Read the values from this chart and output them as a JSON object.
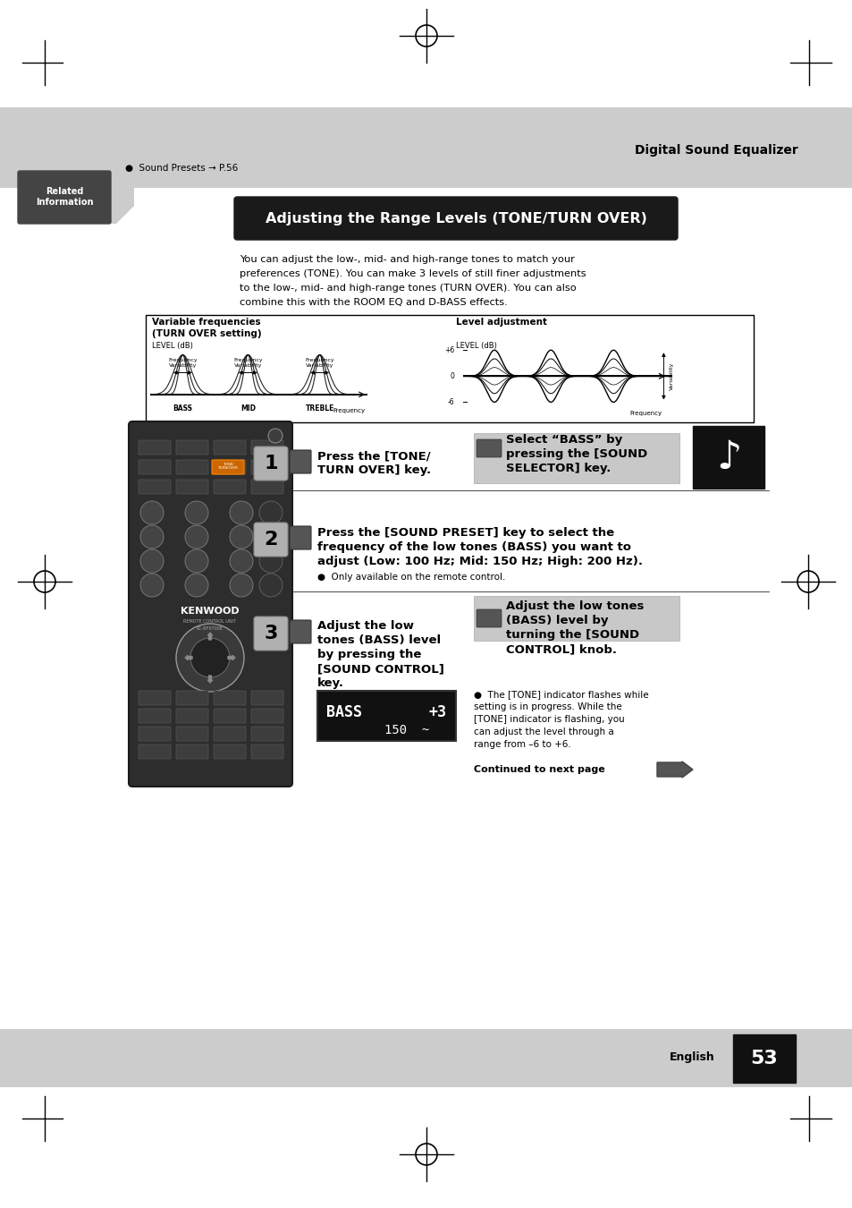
{
  "bg_color": "#ffffff",
  "header_bg": "#cccccc",
  "footer_bg": "#cccccc",
  "title_box_bg": "#1a1a1a",
  "title_box_text": "Adjusting the Range Levels (TONE/TURN OVER)",
  "title_box_text_color": "#ffffff",
  "section_title": "Digital Sound Equalizer",
  "related_label": "Related\nInformation",
  "related_bg": "#444444",
  "bullet_related": "●  Sound Presets → P.56",
  "body_line1": "You can adjust the low-, mid- and high-range tones to match your",
  "body_line2": "preferences (TONE). You can make 3 levels of still finer adjustments",
  "body_line3": "to the low-, mid- and high-range tones (TURN OVER). You can also",
  "body_line4": "combine this with the ROOM EQ and D-BASS effects.",
  "step1_text_l1": "Press the [TONE/",
  "step1_text_l2": "TURN OVER] key.",
  "step1_right_l1": "Select “BASS” by",
  "step1_right_l2": "pressing the [SOUND",
  "step1_right_l3": "SELECTOR] key.",
  "step2_l1": "Press the [SOUND PRESET] key to select the",
  "step2_l2": "frequency of the low tones (BASS) you want to",
  "step2_l3": "adjust (Low: 100 Hz; Mid: 150 Hz; High: 200 Hz).",
  "step2_bullet": "●  Only available on the remote control.",
  "step3_l1": "Adjust the low",
  "step3_l2": "tones (BASS) level",
  "step3_l3": "by pressing the",
  "step3_l4": "[SOUND CONTROL]",
  "step3_l5": "key.",
  "step3_r1": "Adjust the low tones",
  "step3_r2": "(BASS) level by",
  "step3_r3": "turning the [SOUND",
  "step3_r4": "CONTROL] knob.",
  "tone_note1": "●  The [TONE] indicator flashes while",
  "tone_note2": "setting is in progress. While the",
  "tone_note3": "[TONE] indicator is flashing, you",
  "tone_note4": "can adjust the level through a",
  "tone_note5": "range from –6 to +6.",
  "continued_text": "Continued to next page",
  "page_num": "53",
  "english_label": "English"
}
